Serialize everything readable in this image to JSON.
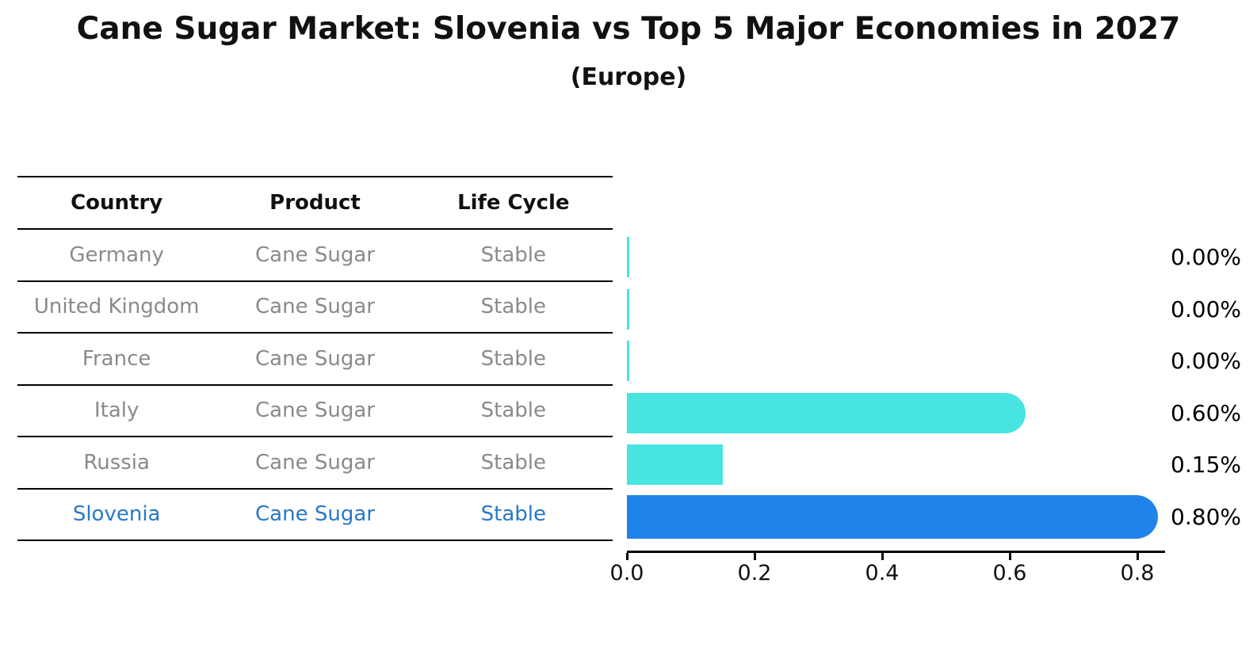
{
  "chart_data": {
    "type": "bar",
    "orientation": "horizontal",
    "title": "Cane Sugar Market: Slovenia vs Top 5 Major Economies in 2027",
    "subtitle": "(Europe)",
    "categories": [
      "Germany",
      "United Kingdom",
      "France",
      "Italy",
      "Russia",
      "Slovenia"
    ],
    "values": [
      0.0,
      0.0,
      0.0,
      0.6,
      0.15,
      0.8
    ],
    "value_labels": [
      "0.00%",
      "0.00%",
      "0.00%",
      "0.60%",
      "0.15%",
      "0.80%"
    ],
    "x_ticks": [
      0.0,
      0.2,
      0.4,
      0.6,
      0.8
    ],
    "x_tick_labels": [
      "0.0",
      "0.2",
      "0.4",
      "0.6",
      "0.8"
    ],
    "xlim": [
      0,
      0.84
    ],
    "grid": false,
    "legend": false,
    "highlight_index": 5,
    "bar_color": "#47E4E2",
    "highlight_color": "#2083EA"
  },
  "table": {
    "headers": [
      "Country",
      "Product",
      "Life Cycle"
    ],
    "rows": [
      {
        "country": "Germany",
        "product": "Cane Sugar",
        "life_cycle": "Stable",
        "highlight": false
      },
      {
        "country": "United Kingdom",
        "product": "Cane Sugar",
        "life_cycle": "Stable",
        "highlight": false
      },
      {
        "country": "France",
        "product": "Cane Sugar",
        "life_cycle": "Stable",
        "highlight": false
      },
      {
        "country": "Italy",
        "product": "Cane Sugar",
        "life_cycle": "Stable",
        "highlight": false
      },
      {
        "country": "Russia",
        "product": "Cane Sugar",
        "life_cycle": "Stable",
        "highlight": false
      },
      {
        "country": "Slovenia",
        "product": "Cane Sugar",
        "life_cycle": "Stable",
        "highlight": true
      }
    ]
  },
  "colors": {
    "bar_cyan": "#47E4E2",
    "bar_blue": "#2083EA",
    "highlight_text": "#2878C8",
    "row_text": "#8a8a8a"
  }
}
